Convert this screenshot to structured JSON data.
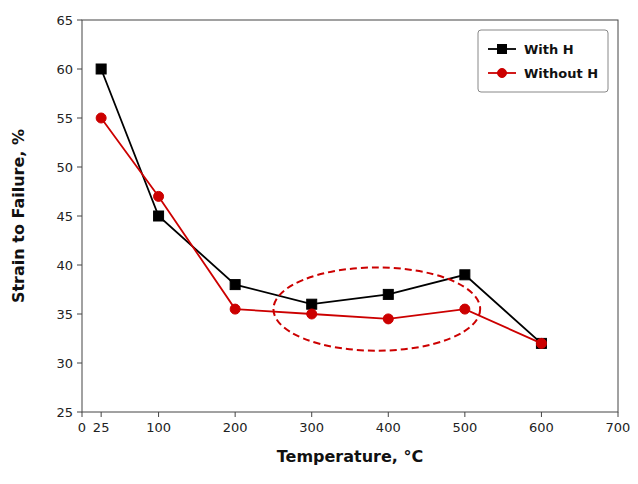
{
  "chart_data": {
    "type": "line",
    "xlabel": "Temperature, °C",
    "ylabel": "Strain to Failure, %",
    "x": [
      25,
      100,
      200,
      300,
      400,
      500,
      600
    ],
    "series": [
      {
        "name": "With H",
        "color": "#000000",
        "marker": "square",
        "values": [
          60,
          45,
          38,
          36,
          37,
          39,
          32
        ]
      },
      {
        "name": "Without H",
        "color": "#cc0000",
        "marker": "circle",
        "values": [
          55,
          47,
          35.5,
          35,
          34.5,
          35.5,
          32
        ]
      }
    ],
    "xlim": [
      0,
      700
    ],
    "ylim": [
      25,
      65
    ],
    "xticks": [
      0,
      25,
      100,
      200,
      300,
      400,
      500,
      600,
      700
    ],
    "yticks": [
      25,
      30,
      35,
      40,
      45,
      50,
      55,
      60,
      65
    ],
    "ellipse": {
      "x": 385,
      "y": 35.5,
      "width": 270,
      "height": 8.5,
      "color": "#cc0000",
      "line_style": "dashed"
    },
    "legend": "upper right",
    "grid": false
  }
}
